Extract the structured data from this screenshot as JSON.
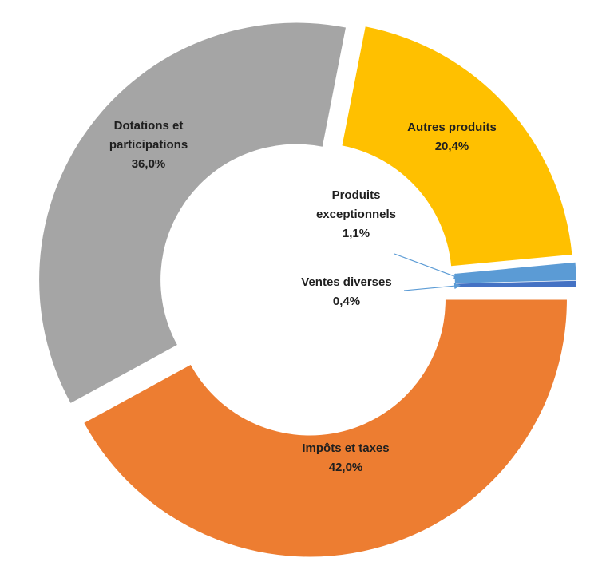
{
  "chart_data": {
    "type": "pie",
    "variant": "donut",
    "exploded": true,
    "slices": [
      {
        "label_lines": [
          "Impôts et taxes"
        ],
        "value_label": "42,0%",
        "value": 42.0,
        "color": "#ED7D31"
      },
      {
        "label_lines": [
          "Dotations et",
          "participations"
        ],
        "value_label": "36,0%",
        "value": 36.0,
        "color": "#A5A5A5"
      },
      {
        "label_lines": [
          "Autres produits"
        ],
        "value_label": "20,4%",
        "value": 20.4,
        "color": "#FFC000"
      },
      {
        "label_lines": [
          "Produits",
          "exceptionnels"
        ],
        "value_label": "1,1%",
        "value": 1.1,
        "color": "#5B9BD5"
      },
      {
        "label_lines": [
          "Ventes diverses"
        ],
        "value_label": "0,4%",
        "value": 0.4,
        "color": "#4472C4"
      }
    ],
    "legend": "none"
  }
}
